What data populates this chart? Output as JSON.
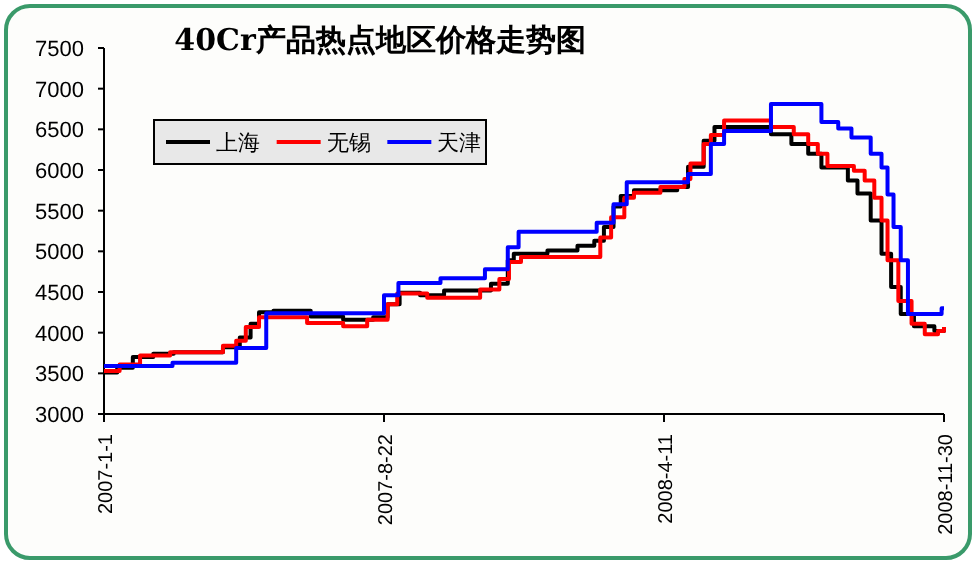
{
  "chart_data": {
    "type": "step",
    "title": "40Cr产品热点地区价格走势图",
    "ylim": [
      3000,
      7500
    ],
    "yticks": [
      3000,
      3500,
      4000,
      4500,
      5000,
      5500,
      6000,
      6500,
      7000,
      7500
    ],
    "xlim": [
      "2007-01-01",
      "2008-11-30"
    ],
    "xticks": [
      {
        "value": "2007-01-01",
        "label": "2007-1-1"
      },
      {
        "value": "2007-08-22",
        "label": "2007-8-22"
      },
      {
        "value": "2008-04-11",
        "label": "2008-4-11"
      },
      {
        "value": "2008-11-30",
        "label": "2008-11-30"
      }
    ],
    "legend": "top left",
    "grid": false,
    "series": [
      {
        "name": "上海",
        "color": "#000000",
        "x": [
          "2007-01-01",
          "2007-01-12",
          "2007-01-25",
          "2007-02-11",
          "2007-02-28",
          "2007-04-10",
          "2007-04-24",
          "2007-05-03",
          "2007-05-10",
          "2007-05-22",
          "2007-06-22",
          "2007-07-19",
          "2007-08-13",
          "2007-08-25",
          "2007-09-04",
          "2007-09-21",
          "2007-10-11",
          "2007-11-19",
          "2007-12-03",
          "2007-12-08",
          "2008-01-05",
          "2008-01-30",
          "2008-02-13",
          "2008-02-21",
          "2008-02-29",
          "2008-03-06",
          "2008-03-17",
          "2008-04-22",
          "2008-05-01",
          "2008-05-14",
          "2008-05-23",
          "2008-07-09",
          "2008-07-26",
          "2008-08-09",
          "2008-08-20",
          "2008-09-11",
          "2008-09-19",
          "2008-09-30",
          "2008-10-09",
          "2008-10-17",
          "2008-10-25",
          "2008-11-05",
          "2008-11-22",
          "2008-11-30"
        ],
        "values": [
          3510,
          3570,
          3700,
          3740,
          3760,
          3820,
          3940,
          4110,
          4250,
          4270,
          4200,
          4160,
          4190,
          4350,
          4490,
          4460,
          4520,
          4600,
          4890,
          4970,
          5010,
          5070,
          5130,
          5300,
          5550,
          5680,
          5750,
          5790,
          6040,
          6360,
          6530,
          6440,
          6320,
          6200,
          6030,
          5870,
          5710,
          5380,
          4970,
          4560,
          4230,
          4080,
          4020,
          4070
        ]
      },
      {
        "name": "无锡",
        "color": "#ff0000",
        "x": [
          "2007-01-01",
          "2007-01-14",
          "2007-01-31",
          "2007-02-25",
          "2007-04-10",
          "2007-04-21",
          "2007-04-29",
          "2007-05-10",
          "2007-06-19",
          "2007-07-19",
          "2007-08-08",
          "2007-08-25",
          "2007-09-02",
          "2007-09-27",
          "2007-11-10",
          "2007-11-26",
          "2007-12-04",
          "2007-12-14",
          "2008-02-18",
          "2008-02-27",
          "2008-03-09",
          "2008-03-17",
          "2008-04-08",
          "2008-04-28",
          "2008-05-03",
          "2008-05-14",
          "2008-05-20",
          "2008-05-31",
          "2008-07-09",
          "2008-07-28",
          "2008-08-09",
          "2008-08-17",
          "2008-08-25",
          "2008-09-16",
          "2008-09-25",
          "2008-10-03",
          "2008-10-09",
          "2008-10-14",
          "2008-10-23",
          "2008-11-03",
          "2008-11-14",
          "2008-11-25",
          "2008-11-30"
        ],
        "values": [
          3530,
          3610,
          3720,
          3760,
          3840,
          3900,
          4070,
          4190,
          4120,
          4080,
          4160,
          4350,
          4480,
          4430,
          4530,
          4660,
          4870,
          4930,
          5170,
          5420,
          5660,
          5720,
          5790,
          5890,
          6080,
          6320,
          6430,
          6610,
          6530,
          6440,
          6320,
          6200,
          6050,
          5990,
          5870,
          5660,
          5380,
          4890,
          4390,
          4110,
          3980,
          4020,
          4070
        ]
      },
      {
        "name": "天津",
        "color": "#0000ff",
        "x": [
          "2007-01-01",
          "2007-02-27",
          "2007-04-21",
          "2007-05-16",
          "2007-08-22",
          "2007-09-03",
          "2007-10-08",
          "2007-11-14",
          "2007-12-03",
          "2007-12-12",
          "2008-02-15",
          "2008-02-29",
          "2008-03-11",
          "2008-05-01",
          "2008-05-20",
          "2008-05-31",
          "2008-07-09",
          "2008-08-20",
          "2008-09-03",
          "2008-09-14",
          "2008-09-30",
          "2008-10-09",
          "2008-10-14",
          "2008-10-19",
          "2008-10-25",
          "2008-10-31",
          "2008-11-28",
          "2008-11-30"
        ],
        "values": [
          3590,
          3630,
          3810,
          4240,
          4460,
          4610,
          4670,
          4780,
          5050,
          5240,
          5350,
          5580,
          5850,
          5950,
          6320,
          6480,
          6810,
          6590,
          6510,
          6400,
          6200,
          6030,
          5700,
          5300,
          4890,
          4230,
          4300,
          4300
        ]
      }
    ]
  }
}
